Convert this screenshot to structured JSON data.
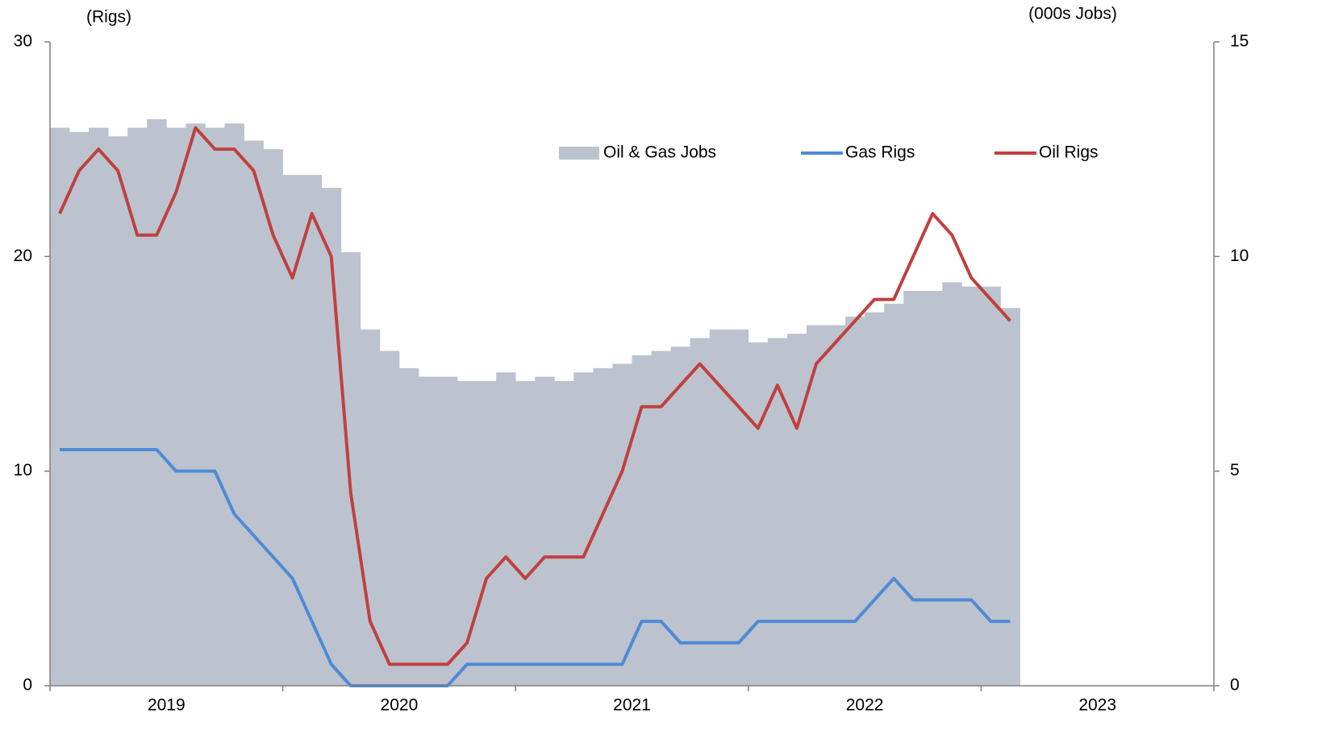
{
  "chart_data": {
    "type": "combo",
    "y_label": "(Rigs)",
    "y2_label": "(000s Jobs)",
    "categories": [
      null,
      null,
      null,
      null,
      null,
      null,
      null,
      null,
      null,
      null,
      null,
      null,
      null,
      null,
      null,
      null,
      null,
      null,
      null,
      null,
      null,
      null,
      null,
      null,
      null,
      null,
      null,
      null,
      null,
      null,
      null,
      null,
      null,
      null,
      null,
      null,
      null,
      null,
      null,
      null,
      null,
      null,
      null,
      null,
      null,
      null,
      null,
      null,
      null,
      null,
      null,
      null,
      null,
      null,
      null,
      null,
      null,
      null,
      null,
      null
    ],
    "year_labels": [
      "2019",
      "2020",
      "2021",
      "2022",
      "2023"
    ],
    "ylim": [
      0,
      30
    ],
    "yticks": [
      0,
      10,
      20,
      30
    ],
    "y2lim": [
      0,
      15
    ],
    "y2ticks": [
      0,
      5,
      10,
      15
    ],
    "series": [
      {
        "name": "Oil & Gas Jobs",
        "type": "bar",
        "axis": "y2",
        "color": "#bcc3ce",
        "values": [
          13.0,
          12.9,
          13.0,
          12.8,
          13.0,
          13.2,
          13.0,
          13.1,
          13.0,
          13.1,
          12.7,
          12.5,
          11.9,
          11.9,
          11.6,
          10.1,
          8.3,
          7.8,
          7.4,
          7.2,
          7.2,
          7.1,
          7.1,
          7.3,
          7.1,
          7.2,
          7.1,
          7.3,
          7.4,
          7.5,
          7.7,
          7.8,
          7.9,
          8.1,
          8.3,
          8.3,
          8.0,
          8.1,
          8.2,
          8.4,
          8.4,
          8.6,
          8.7,
          8.9,
          9.2,
          9.2,
          9.4,
          9.3,
          9.3,
          8.8,
          null,
          null,
          null,
          null,
          null,
          null,
          null,
          null,
          null,
          null
        ]
      },
      {
        "name": "Gas Rigs",
        "type": "line",
        "color": "#4f8ad6",
        "values": [
          11,
          11,
          11,
          11,
          11,
          11,
          10,
          10,
          10,
          8,
          7,
          6,
          5,
          3,
          1,
          0,
          0,
          0,
          0,
          0,
          0,
          1,
          1,
          1,
          1,
          1,
          1,
          1,
          1,
          1,
          3,
          3,
          2,
          2,
          2,
          2,
          3,
          3,
          3,
          3,
          3,
          3,
          4,
          5,
          4,
          4,
          4,
          4,
          3,
          3,
          null,
          null,
          null,
          null,
          null,
          null,
          null,
          null,
          null,
          null
        ]
      },
      {
        "name": "Oil Rigs",
        "type": "line",
        "color": "#c0403f",
        "values": [
          22,
          24,
          25,
          24,
          21,
          21,
          23,
          26,
          25,
          25,
          24,
          21,
          19,
          22,
          20,
          9,
          3,
          1,
          1,
          1,
          1,
          2,
          5,
          6,
          5,
          6,
          6,
          6,
          8,
          10,
          13,
          13,
          14,
          15,
          14,
          13,
          12,
          14,
          12,
          15,
          16,
          17,
          18,
          18,
          20,
          22,
          21,
          19,
          18,
          17,
          null,
          null,
          null,
          null,
          null,
          null,
          null,
          null,
          null,
          null
        ]
      }
    ]
  }
}
